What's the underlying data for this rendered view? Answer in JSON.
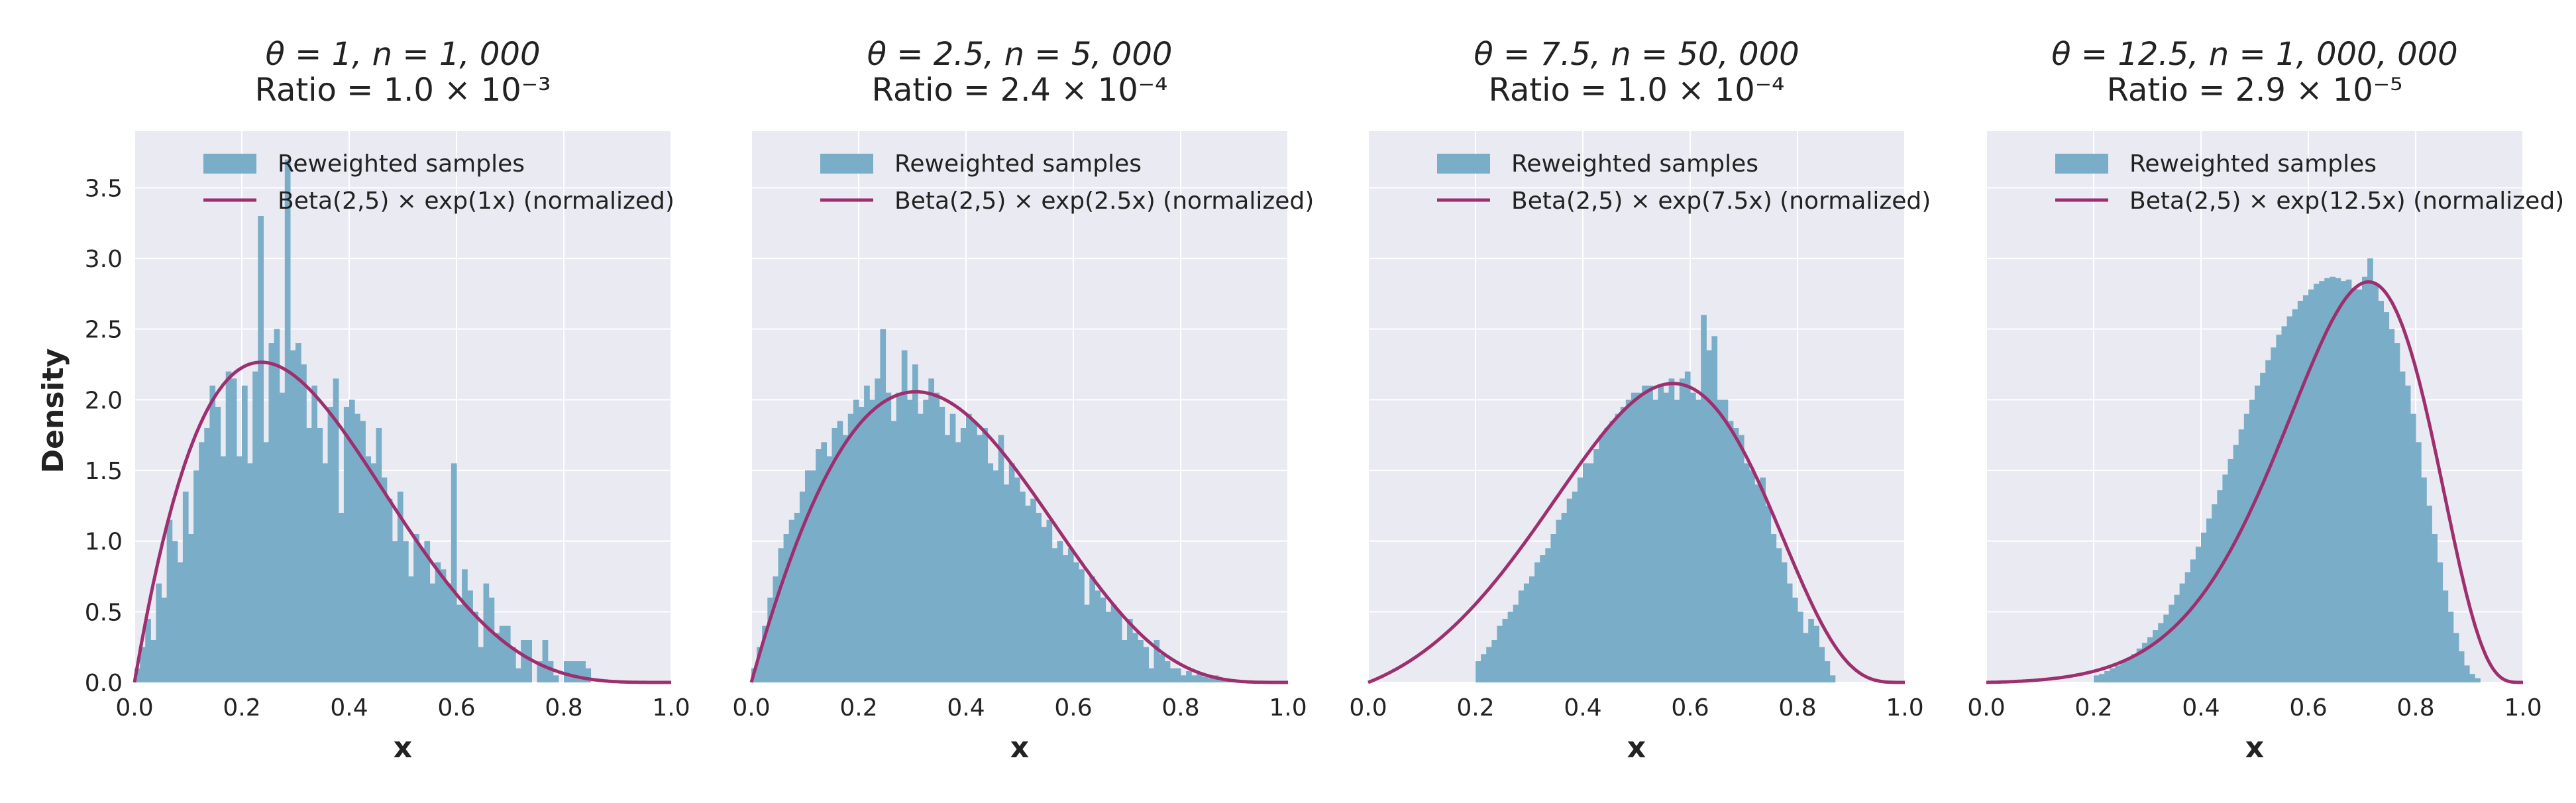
{
  "figure": {
    "ylabel": "Density",
    "colors": {
      "hist": "#7aaec8",
      "curve": "#9e2f6e",
      "panel_bg": "#eaeaf2",
      "grid": "#ffffff"
    }
  },
  "chart_data": [
    {
      "type": "bar",
      "title_line1": "θ = 1, n = 1, 000",
      "title_line2": "Ratio = 1.0 × 10⁻³",
      "theta": 1,
      "n": 1000,
      "xlabel": "x",
      "ylabel": "Density",
      "xlim": [
        0,
        1
      ],
      "ylim": [
        0,
        3.9
      ],
      "xticks": [
        0.0,
        0.2,
        0.4,
        0.6,
        0.8,
        1.0
      ],
      "xtick_labels": [
        "0.0",
        "0.2",
        "0.4",
        "0.6",
        "0.8",
        "1.0"
      ],
      "yticks": [
        0.0,
        0.5,
        1.0,
        1.5,
        2.0,
        2.5,
        3.0,
        3.5
      ],
      "ytick_labels": [
        "0.0",
        "0.5",
        "1.0",
        "1.5",
        "2.0",
        "2.5",
        "3.0",
        "3.5"
      ],
      "legend": [
        "Reweighted samples",
        "Beta(2,5) × exp(1x) (normalized)"
      ],
      "bin_width": 0.01,
      "hist_start": 0.0,
      "hist_values": [
        0.1,
        0.25,
        0.45,
        0.3,
        0.7,
        0.6,
        1.15,
        1.0,
        0.85,
        1.35,
        1.05,
        1.5,
        1.7,
        1.8,
        2.1,
        1.95,
        1.6,
        2.2,
        2.15,
        1.6,
        2.1,
        1.55,
        2.2,
        3.3,
        1.7,
        2.4,
        2.5,
        2.05,
        3.7,
        2.35,
        2.4,
        2.25,
        1.8,
        2.1,
        1.8,
        1.55,
        1.95,
        2.15,
        1.2,
        1.95,
        2.0,
        1.9,
        1.85,
        1.6,
        1.55,
        1.8,
        1.45,
        1.3,
        1.0,
        1.35,
        1.0,
        0.75,
        1.05,
        0.95,
        1.0,
        0.7,
        0.85,
        0.8,
        0.7,
        1.55,
        0.55,
        0.8,
        0.65,
        0.5,
        0.25,
        0.7,
        0.6,
        0.35,
        0.4,
        0.4,
        0.25,
        0.1,
        0.3,
        0.3,
        0.0,
        0.15,
        0.3,
        0.15,
        0.05,
        0.0,
        0.15,
        0.15,
        0.15,
        0.15,
        0.1,
        0.0,
        0.0,
        0.0,
        0.0,
        0.0,
        0.0,
        0.0,
        0.0,
        0.0,
        0.0,
        0.0,
        0.0,
        0.0,
        0.0,
        0.0
      ]
    },
    {
      "type": "bar",
      "title_line1": "θ = 2.5, n = 5, 000",
      "title_line2": "Ratio = 2.4 × 10⁻⁴",
      "theta": 2.5,
      "n": 5000,
      "xlabel": "x",
      "ylabel": "",
      "xlim": [
        0,
        1
      ],
      "ylim": [
        0,
        3.9
      ],
      "xticks": [
        0.0,
        0.2,
        0.4,
        0.6,
        0.8,
        1.0
      ],
      "xtick_labels": [
        "0.0",
        "0.2",
        "0.4",
        "0.6",
        "0.8",
        "1.0"
      ],
      "legend": [
        "Reweighted samples",
        "Beta(2,5) × exp(2.5x) (normalized)"
      ],
      "bin_width": 0.01,
      "hist_start": 0.0,
      "hist_values": [
        0.1,
        0.25,
        0.4,
        0.6,
        0.75,
        0.95,
        1.05,
        1.15,
        1.2,
        1.35,
        1.5,
        1.5,
        1.65,
        1.7,
        1.6,
        1.8,
        1.85,
        1.75,
        1.9,
        2.0,
        1.95,
        2.1,
        2.0,
        2.15,
        2.5,
        2.05,
        1.85,
        2.05,
        2.35,
        2.0,
        2.25,
        1.9,
        2.0,
        2.15,
        2.05,
        1.95,
        1.75,
        1.9,
        1.7,
        1.8,
        1.9,
        1.85,
        1.75,
        1.8,
        1.55,
        1.5,
        1.75,
        1.4,
        1.55,
        1.45,
        1.35,
        1.25,
        1.3,
        1.2,
        1.1,
        1.15,
        0.95,
        1.0,
        0.9,
        0.95,
        0.85,
        0.8,
        0.55,
        0.75,
        0.65,
        0.6,
        0.5,
        0.55,
        0.5,
        0.3,
        0.45,
        0.35,
        0.3,
        0.25,
        0.1,
        0.3,
        0.2,
        0.15,
        0.1,
        0.1,
        0.05,
        0.08,
        0.05,
        0.06,
        0.04,
        0.03,
        0.05,
        0.02,
        0.02,
        0.01,
        0.0,
        0.0,
        0.0,
        0.0,
        0.0,
        0.0,
        0.0,
        0.0,
        0.0,
        0.0
      ]
    },
    {
      "type": "bar",
      "title_line1": "θ = 7.5, n = 50, 000",
      "title_line2": "Ratio = 1.0 × 10⁻⁴",
      "theta": 7.5,
      "n": 50000,
      "xlabel": "x",
      "ylabel": "",
      "xlim": [
        0,
        1
      ],
      "ylim": [
        0,
        3.9
      ],
      "xticks": [
        0.0,
        0.2,
        0.4,
        0.6,
        0.8,
        1.0
      ],
      "xtick_labels": [
        "0.0",
        "0.2",
        "0.4",
        "0.6",
        "0.8",
        "1.0"
      ],
      "legend": [
        "Reweighted samples",
        "Beta(2,5) × exp(7.5x) (normalized)"
      ],
      "bin_width": 0.01,
      "hist_start": 0.0,
      "hist_values": [
        0.0,
        0.0,
        0.0,
        0.0,
        0.0,
        0.0,
        0.0,
        0.0,
        0.0,
        0.0,
        0.0,
        0.0,
        0.0,
        0.0,
        0.0,
        0.0,
        0.0,
        0.0,
        0.0,
        0.0,
        0.15,
        0.2,
        0.25,
        0.3,
        0.4,
        0.45,
        0.5,
        0.55,
        0.65,
        0.7,
        0.75,
        0.85,
        0.9,
        0.95,
        1.05,
        1.15,
        1.2,
        1.3,
        1.35,
        1.45,
        1.55,
        1.55,
        1.65,
        1.75,
        1.8,
        1.85,
        1.9,
        1.95,
        2.0,
        2.05,
        2.05,
        2.1,
        2.1,
        2.0,
        2.1,
        2.05,
        2.15,
        2.0,
        2.15,
        2.2,
        2.05,
        2.0,
        2.6,
        2.35,
        2.45,
        2.0,
        2.0,
        1.85,
        1.8,
        1.75,
        1.55,
        1.5,
        1.4,
        1.45,
        1.25,
        1.05,
        0.95,
        0.85,
        0.7,
        0.6,
        0.5,
        0.35,
        0.45,
        0.4,
        0.25,
        0.15,
        0.05,
        0.0,
        0.0,
        0.0,
        0.0,
        0.0,
        0.0,
        0.0,
        0.0,
        0.0,
        0.0,
        0.0,
        0.0,
        0.0
      ]
    },
    {
      "type": "bar",
      "title_line1": "θ = 12.5, n = 1, 000, 000",
      "title_line2": "Ratio = 2.9 × 10⁻⁵",
      "theta": 12.5,
      "n": 1000000,
      "xlabel": "x",
      "ylabel": "",
      "xlim": [
        0,
        1
      ],
      "ylim": [
        0,
        3.9
      ],
      "xticks": [
        0.0,
        0.2,
        0.4,
        0.6,
        0.8,
        1.0
      ],
      "xtick_labels": [
        "0.0",
        "0.2",
        "0.4",
        "0.6",
        "0.8",
        "1.0"
      ],
      "legend": [
        "Reweighted samples",
        "Beta(2,5) × exp(12.5x) (normalized)"
      ],
      "bin_width": 0.01,
      "hist_start": 0.0,
      "hist_values": [
        0.0,
        0.0,
        0.0,
        0.0,
        0.0,
        0.0,
        0.0,
        0.0,
        0.0,
        0.0,
        0.0,
        0.0,
        0.0,
        0.0,
        0.0,
        0.0,
        0.0,
        0.0,
        0.0,
        0.0,
        0.05,
        0.06,
        0.08,
        0.1,
        0.12,
        0.15,
        0.17,
        0.2,
        0.24,
        0.28,
        0.32,
        0.37,
        0.42,
        0.48,
        0.55,
        0.62,
        0.7,
        0.78,
        0.87,
        0.96,
        1.06,
        1.16,
        1.26,
        1.36,
        1.47,
        1.58,
        1.68,
        1.79,
        1.9,
        2.0,
        2.1,
        2.19,
        2.28,
        2.37,
        2.46,
        2.52,
        2.59,
        2.64,
        2.7,
        2.74,
        2.78,
        2.82,
        2.84,
        2.86,
        2.87,
        2.86,
        2.84,
        2.85,
        2.79,
        2.78,
        2.87,
        3.0,
        2.82,
        2.7,
        2.62,
        2.5,
        2.4,
        2.2,
        2.1,
        1.9,
        1.7,
        1.45,
        1.25,
        1.05,
        0.85,
        0.65,
        0.5,
        0.35,
        0.22,
        0.12,
        0.06,
        0.03,
        0.0,
        0.0,
        0.0,
        0.0,
        0.0,
        0.0,
        0.0,
        0.0
      ]
    }
  ]
}
